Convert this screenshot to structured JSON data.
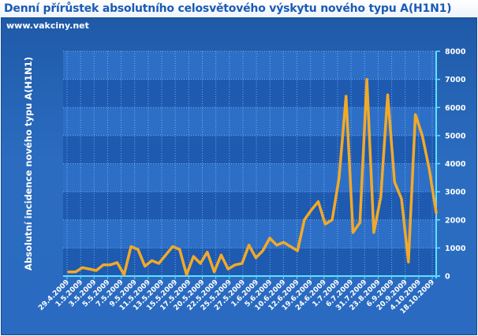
{
  "header": {
    "title": "Denní přírůstek absolutního celosvětového výskytu nového typu A(H1N1)",
    "website": "www.vakciny.net"
  },
  "colors": {
    "title": "#1a5bb5",
    "panel": "#2563b6",
    "plot_band_dark": "#1d5ab0",
    "plot_band_light": "#2d6fc6",
    "line": "#f2a928",
    "axis": "#5fe0ff",
    "text": "#ffffff"
  },
  "chart_data": {
    "type": "line",
    "title": "Denní přírůstek absolutního celosvětového výskytu nového typu A(H1N1)",
    "xlabel": "",
    "ylabel": "Absolutní incidence nového typu A(H1N1)",
    "ylim": [
      0,
      8000
    ],
    "yticks": [
      0,
      1000,
      2000,
      3000,
      4000,
      5000,
      6000,
      7000,
      8000
    ],
    "y_axis_side": "right",
    "grid": true,
    "legend": "none",
    "x_tick_labels": [
      "29.4.2009",
      "1.5.2009",
      "3.5.2009",
      "5.5.2009",
      "7.5.2009",
      "9.5.2009",
      "11.5.2009",
      "13.5.2009",
      "15.5.2009",
      "17.5.2009",
      "20.5.2009",
      "22.5.2009",
      "25.5.2009",
      "27.5.2009",
      "1.6.2009",
      "5.6.2009",
      "10.6.2009",
      "12.6.2009",
      "19.6.2009",
      "24.6.2009",
      "1.7.2009",
      "6.7.2009",
      "31.7.2009",
      "23.8.2009",
      "6.9.2009",
      "20.9.2009",
      "4.10.2009",
      "18.10.2009"
    ],
    "values": [
      150,
      150,
      300,
      250,
      200,
      400,
      400,
      480,
      50,
      1050,
      950,
      350,
      550,
      450,
      750,
      1050,
      950,
      50,
      700,
      450,
      850,
      150,
      750,
      250,
      400,
      450,
      1100,
      650,
      900,
      1350,
      1100,
      1200,
      1050,
      900,
      2000,
      2350,
      2650,
      1850,
      2000,
      3500,
      6400,
      1550,
      1900,
      7000,
      1550,
      2800,
      6450,
      3350,
      2750,
      500,
      5750,
      5000,
      3800,
      2250
    ]
  }
}
